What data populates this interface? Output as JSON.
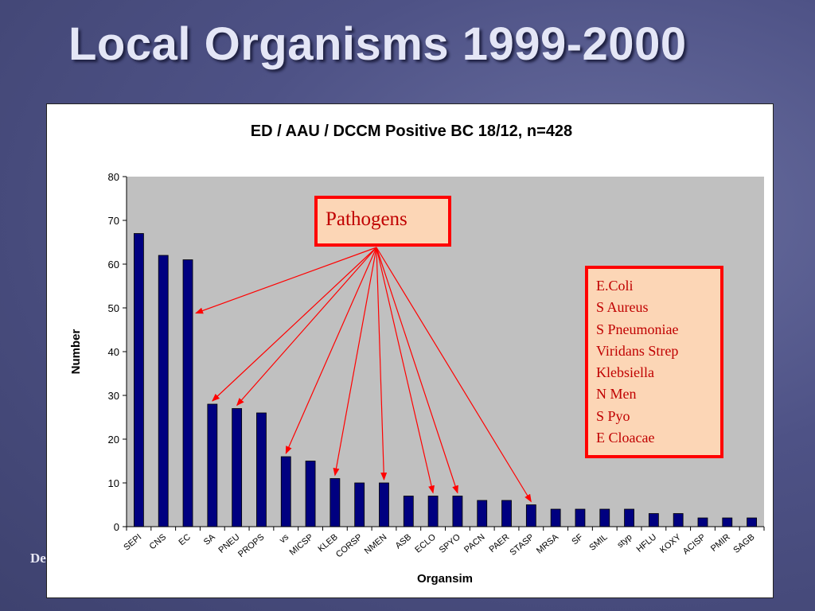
{
  "slide": {
    "title": "Local Organisms 1999-2000",
    "footer_text": "De"
  },
  "annotations": {
    "pathogens_label": "Pathogens",
    "pathogen_list": [
      "E.Coli",
      "S Aureus",
      "S Pneumoniae",
      "Viridans Strep",
      "Klebsiella",
      "N Men",
      "S Pyo",
      "E Cloacae"
    ],
    "arrow_color": "#ff0000",
    "arrow_targets": [
      "EC",
      "SA",
      "PNEU",
      "vs",
      "KLEB",
      "NMEN",
      "ECLO",
      "SPYO",
      "STASP"
    ]
  },
  "chart_data": {
    "type": "bar",
    "title": "ED / AAU / DCCM Positive BC 18/12, n=428",
    "xlabel": "Organsim",
    "ylabel": "Number",
    "ylim": [
      0,
      80
    ],
    "yticks": [
      0,
      10,
      20,
      30,
      40,
      50,
      60,
      70,
      80
    ],
    "grid": false,
    "plot_background": "#c0c0c0",
    "bar_color": "#000080",
    "categories": [
      "SEPI",
      "CNS",
      "EC",
      "SA",
      "PNEU",
      "PROPS",
      "vs",
      "MICSP",
      "KLEB",
      "CORSP",
      "NMEN",
      "ASB",
      "ECLO",
      "SPYO",
      "PACN",
      "PAER",
      "STASP",
      "MRSA",
      "SF",
      "SMIL",
      "styp",
      "HFLU",
      "KOXY",
      "ACISP",
      "PMIR",
      "SAGB"
    ],
    "values": [
      67,
      62,
      61,
      28,
      27,
      26,
      16,
      15,
      11,
      10,
      10,
      7,
      7,
      7,
      6,
      6,
      5,
      4,
      4,
      4,
      4,
      3,
      3,
      2,
      2,
      2
    ]
  }
}
